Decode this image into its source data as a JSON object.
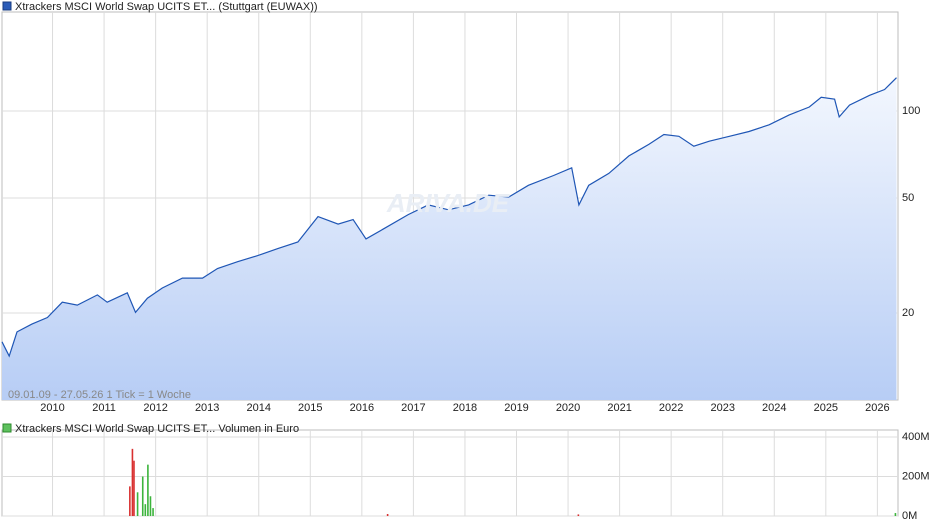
{
  "chart_data": [
    {
      "type": "line",
      "title": "Xtrackers MSCI World Swap UCITS ET... (Stuttgart (EUWAX))",
      "annotation": "09.01.09 - 27.05.26    1 Tick = 1 Woche",
      "watermark": "ARIVA.DE",
      "log_scale": true,
      "grid": true,
      "xlim": [
        2009.02,
        2026.4
      ],
      "ylim": [
        10,
        220
      ],
      "xticks": [
        2010,
        2011,
        2012,
        2013,
        2014,
        2015,
        2016,
        2017,
        2018,
        2019,
        2020,
        2021,
        2022,
        2023,
        2024,
        2025,
        2026
      ],
      "yticks": [
        20,
        50,
        100
      ],
      "series": [
        {
          "color": "#1f56b5",
          "x": [
            2009.02,
            2009.16,
            2009.31,
            2009.6,
            2009.9,
            2010.19,
            2010.48,
            2010.87,
            2011.06,
            2011.45,
            2011.61,
            2011.84,
            2012.13,
            2012.52,
            2012.91,
            2013.2,
            2013.59,
            2013.98,
            2014.37,
            2014.76,
            2015.15,
            2015.54,
            2015.83,
            2016.08,
            2016.41,
            2016.9,
            2017.29,
            2017.68,
            2018.07,
            2018.46,
            2018.85,
            2019.23,
            2019.72,
            2020.07,
            2020.21,
            2020.4,
            2020.79,
            2021.18,
            2021.57,
            2021.86,
            2022.15,
            2022.44,
            2022.74,
            2023.13,
            2023.51,
            2023.9,
            2024.29,
            2024.68,
            2024.91,
            2025.17,
            2025.26,
            2025.46,
            2025.85,
            2026.14,
            2026.37
          ],
          "values": [
            15.9,
            14.2,
            17.2,
            18.3,
            19.3,
            21.8,
            21.3,
            23.1,
            21.8,
            23.5,
            20.1,
            22.5,
            24.4,
            26.4,
            26.4,
            28.5,
            30.1,
            31.6,
            33.4,
            35.2,
            43.1,
            40.6,
            42.1,
            36.1,
            39.0,
            43.8,
            47.3,
            45.5,
            47.3,
            51.1,
            50.4,
            55.3,
            59.8,
            63.6,
            47.3,
            55.3,
            60.8,
            69.9,
            76.7,
            82.9,
            81.7,
            75.5,
            78.6,
            81.7,
            84.9,
            89.6,
            96.9,
            103.2,
            111.5,
            109.8,
            95.4,
            104.8,
            113.3,
            118.7,
            130.3
          ]
        }
      ]
    },
    {
      "type": "bar",
      "title": "Xtrackers MSCI World Swap UCITS ET... Volumen in Euro",
      "xlim": [
        2009.02,
        2026.4
      ],
      "ylim": [
        0,
        400000000
      ],
      "yticks": [
        {
          "value": 0,
          "label": "0M"
        },
        {
          "value": 200000000,
          "label": "200M"
        },
        {
          "value": 400000000,
          "label": "400M"
        }
      ],
      "x": [
        2011.5,
        2011.55,
        2011.58,
        2011.65,
        2011.75,
        2011.8,
        2011.85,
        2011.9,
        2011.95,
        2016.5,
        2020.2,
        2026.35
      ],
      "values": [
        150000000,
        340000000,
        280000000,
        120000000,
        200000000,
        60000000,
        260000000,
        100000000,
        40000000,
        10000000,
        8000000,
        15000000
      ],
      "colors": [
        "#d93030",
        "#d93030",
        "#d93030",
        "#3cb43c",
        "#3cb43c",
        "#3cb43c",
        "#3cb43c",
        "#3cb43c",
        "#3cb43c",
        "#d93030",
        "#d93030",
        "#3cb43c"
      ]
    }
  ]
}
